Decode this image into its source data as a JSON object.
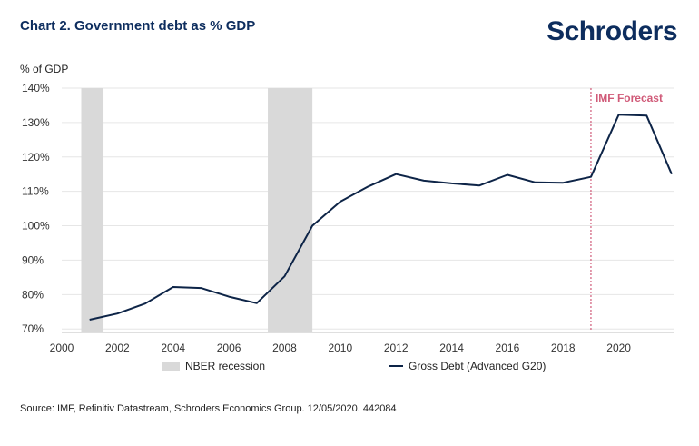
{
  "title": "Chart 2. Government debt as % GDP",
  "brand": "Schroders",
  "source": "Source: IMF, Refinitiv Datastream, Schroders Economics Group. 12/05/2020. 442084",
  "chart_data": {
    "type": "line",
    "ylabel": "% of GDP",
    "xlabel": "",
    "xlim": [
      2000,
      2022
    ],
    "ylim": [
      69,
      140
    ],
    "y_ticks": [
      {
        "value": 70,
        "label": "70%"
      },
      {
        "value": 80,
        "label": "80%"
      },
      {
        "value": 90,
        "label": "90%"
      },
      {
        "value": 100,
        "label": "100%"
      },
      {
        "value": 110,
        "label": "110%"
      },
      {
        "value": 120,
        "label": "120%"
      },
      {
        "value": 130,
        "label": "130%"
      },
      {
        "value": 140,
        "label": "140%"
      }
    ],
    "x_ticks": [
      "2000",
      "2002",
      "2004",
      "2006",
      "2008",
      "2010",
      "2012",
      "2014",
      "2016",
      "2018",
      "2020"
    ],
    "grid": true,
    "legend_position": "bottom",
    "recessions": {
      "name": "NBER recession",
      "color": "#d9d9d9",
      "periods": [
        [
          2000.7,
          2001.5
        ],
        [
          2007.4,
          2009.0
        ]
      ]
    },
    "forecast": {
      "label": "IMF Forecast",
      "x": 2019.0,
      "color": "#d05a78"
    },
    "series": [
      {
        "name": "Gross Debt (Advanced G20)",
        "color": "#0d2447",
        "x": [
          2001,
          2002,
          2003,
          2004,
          2005,
          2006,
          2007,
          2008,
          2009,
          2010,
          2011,
          2012,
          2013,
          2014,
          2015,
          2016,
          2017,
          2018,
          2019,
          2020,
          2021,
          2021.9
        ],
        "values": [
          72.7,
          74.5,
          77.4,
          82.2,
          81.9,
          79.4,
          77.5,
          85.3,
          100.0,
          107.0,
          111.4,
          115.0,
          113.1,
          112.3,
          111.7,
          114.8,
          112.6,
          112.5,
          114.2,
          132.3,
          132.0,
          115.0
        ]
      }
    ]
  }
}
